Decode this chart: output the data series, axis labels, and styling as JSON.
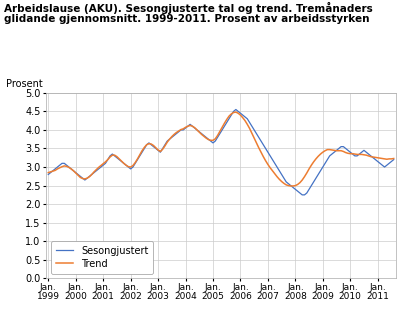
{
  "title_line1": "Arbeidslause (AKU). Sesongjusterte tal og trend. Tremånaders",
  "title_line2": "glidande gjennomsnitt. 1999-2011. Prosent av arbeidsstyrken",
  "ylabel": "Prosent",
  "ylim": [
    0.0,
    5.0
  ],
  "yticks": [
    0.0,
    0.5,
    1.0,
    1.5,
    2.0,
    2.5,
    3.0,
    3.5,
    4.0,
    4.5,
    5.0
  ],
  "color_seasonadj": "#4472C4",
  "color_trend": "#ED7D31",
  "legend_labels": [
    "Sesongjustert",
    "Trend"
  ],
  "x_tick_labels": [
    "Jan.\n1999",
    "Jan.\n2000",
    "Jan.\n2001",
    "Jan.\n2002",
    "Jan.\n2003",
    "Jan.\n2004",
    "Jan.\n2005",
    "Jan.\n2006",
    "Jan.\n2007",
    "Jan.\n2008",
    "Jan.\n2009",
    "Jan.\n2010",
    "Jan.\n2011"
  ],
  "seasonadj": [
    2.8,
    2.85,
    2.9,
    2.95,
    3.0,
    3.05,
    3.1,
    3.1,
    3.05,
    3.0,
    2.95,
    2.9,
    2.85,
    2.8,
    2.75,
    2.7,
    2.65,
    2.7,
    2.75,
    2.8,
    2.85,
    2.9,
    2.95,
    3.0,
    3.05,
    3.1,
    3.2,
    3.3,
    3.35,
    3.3,
    3.25,
    3.2,
    3.15,
    3.1,
    3.05,
    3.0,
    2.95,
    3.0,
    3.1,
    3.2,
    3.3,
    3.4,
    3.5,
    3.6,
    3.65,
    3.6,
    3.55,
    3.5,
    3.45,
    3.4,
    3.5,
    3.6,
    3.7,
    3.75,
    3.8,
    3.85,
    3.9,
    3.95,
    4.0,
    4.0,
    4.05,
    4.1,
    4.15,
    4.1,
    4.05,
    4.0,
    3.95,
    3.9,
    3.85,
    3.8,
    3.75,
    3.7,
    3.65,
    3.7,
    3.8,
    3.9,
    4.0,
    4.1,
    4.2,
    4.3,
    4.4,
    4.5,
    4.55,
    4.5,
    4.45,
    4.4,
    4.35,
    4.3,
    4.2,
    4.1,
    4.0,
    3.9,
    3.8,
    3.7,
    3.6,
    3.5,
    3.4,
    3.3,
    3.2,
    3.1,
    3.0,
    2.9,
    2.8,
    2.7,
    2.6,
    2.55,
    2.5,
    2.45,
    2.4,
    2.35,
    2.3,
    2.25,
    2.25,
    2.3,
    2.4,
    2.5,
    2.6,
    2.7,
    2.8,
    2.9,
    3.0,
    3.1,
    3.2,
    3.3,
    3.35,
    3.4,
    3.45,
    3.5,
    3.55,
    3.55,
    3.5,
    3.45,
    3.4,
    3.35,
    3.3,
    3.3,
    3.35,
    3.4,
    3.45,
    3.4,
    3.35,
    3.3,
    3.25,
    3.2,
    3.15,
    3.1,
    3.05,
    3.0,
    3.05,
    3.1,
    3.15,
    3.2
  ],
  "trend": [
    2.85,
    2.87,
    2.89,
    2.91,
    2.95,
    2.98,
    3.01,
    3.03,
    3.02,
    2.99,
    2.95,
    2.9,
    2.84,
    2.78,
    2.72,
    2.69,
    2.68,
    2.7,
    2.74,
    2.8,
    2.87,
    2.93,
    2.99,
    3.04,
    3.09,
    3.14,
    3.2,
    3.27,
    3.32,
    3.32,
    3.28,
    3.22,
    3.16,
    3.1,
    3.05,
    3.01,
    3.0,
    3.04,
    3.12,
    3.22,
    3.33,
    3.44,
    3.53,
    3.6,
    3.63,
    3.62,
    3.58,
    3.52,
    3.46,
    3.42,
    3.48,
    3.57,
    3.67,
    3.75,
    3.82,
    3.88,
    3.93,
    3.97,
    4.01,
    4.03,
    4.07,
    4.1,
    4.12,
    4.1,
    4.06,
    4.0,
    3.94,
    3.88,
    3.83,
    3.78,
    3.74,
    3.72,
    3.72,
    3.76,
    3.85,
    3.96,
    4.07,
    4.18,
    4.28,
    4.37,
    4.43,
    4.47,
    4.48,
    4.45,
    4.4,
    4.33,
    4.25,
    4.15,
    4.04,
    3.91,
    3.78,
    3.65,
    3.52,
    3.4,
    3.28,
    3.17,
    3.07,
    2.98,
    2.9,
    2.82,
    2.74,
    2.67,
    2.61,
    2.56,
    2.52,
    2.5,
    2.49,
    2.49,
    2.5,
    2.53,
    2.58,
    2.65,
    2.74,
    2.84,
    2.95,
    3.05,
    3.14,
    3.22,
    3.29,
    3.35,
    3.4,
    3.44,
    3.47,
    3.47,
    3.46,
    3.45,
    3.44,
    3.44,
    3.44,
    3.42,
    3.39,
    3.37,
    3.36,
    3.36,
    3.35,
    3.34,
    3.34,
    3.34,
    3.33,
    3.32,
    3.3,
    3.28,
    3.27,
    3.26,
    3.25,
    3.24,
    3.23,
    3.22,
    3.21,
    3.22,
    3.22,
    3.23
  ],
  "figsize": [
    4.0,
    3.2
  ],
  "dpi": 100
}
